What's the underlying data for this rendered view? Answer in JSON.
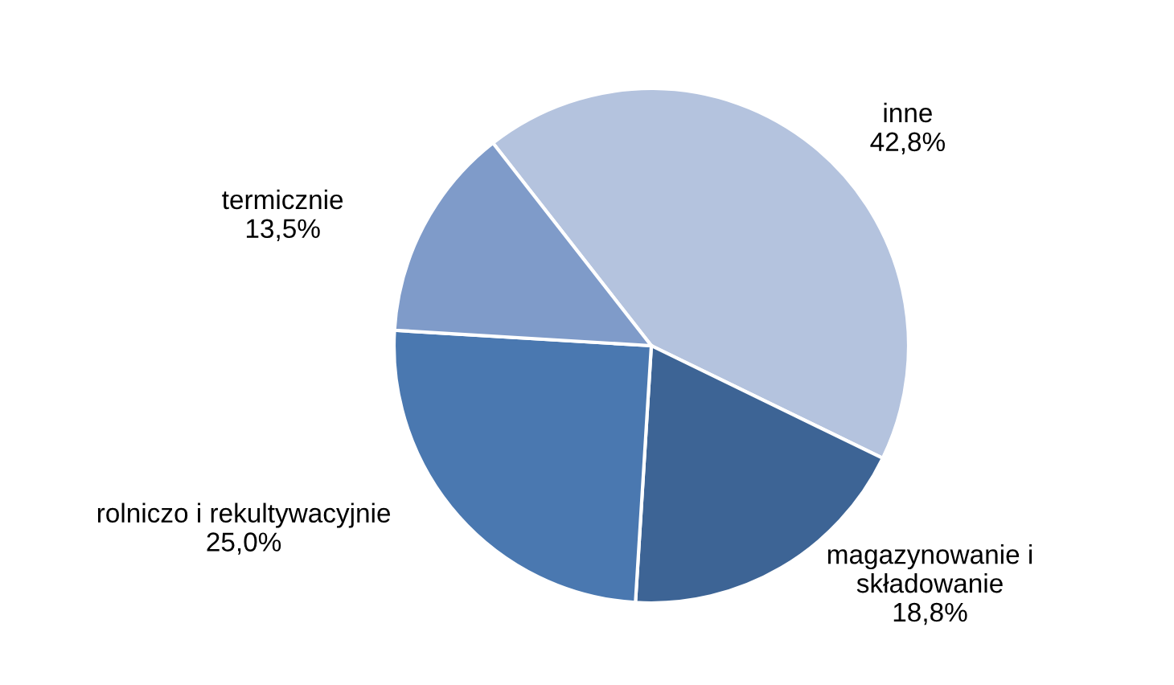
{
  "chart_data": {
    "type": "pie",
    "categories": [
      "inne",
      "magazynowanie i\nskładowanie",
      "rolniczo i rekultywacyjnie",
      "termicznie"
    ],
    "values": [
      42.8,
      18.8,
      25.0,
      13.5
    ],
    "value_labels": [
      "42,8%",
      "18,8%",
      "25,0%",
      "13,5%"
    ],
    "colors": [
      "#b4c3de",
      "#3d6495",
      "#4a78b0",
      "#7f9bc9"
    ]
  }
}
